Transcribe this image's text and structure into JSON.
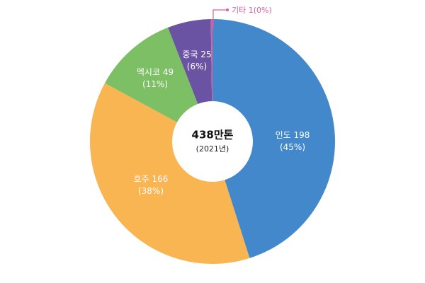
{
  "chart_data": {
    "type": "pie",
    "subtype": "donut",
    "title": "",
    "center_label": "438만톤",
    "center_sublabel": "(2021년)",
    "unit": "만톤",
    "total": 438,
    "categories": [
      "인도",
      "호주",
      "멕시코",
      "중국",
      "기타"
    ],
    "values": [
      198,
      166,
      49,
      25,
      1
    ],
    "percentages": [
      45,
      38,
      11,
      6,
      0
    ],
    "colors": [
      "#4488cc",
      "#f8b552",
      "#7dbf64",
      "#6a53a3",
      "#d9609e"
    ],
    "labels": [
      "인도 198",
      "호주 166",
      "멕시코 49",
      "중국 25",
      "기타 1(0%)"
    ],
    "pct_labels": [
      "(45%)",
      "(38%)",
      "(11%)",
      "(6%)",
      ""
    ],
    "start_angle": "top, clockwise",
    "legend": "none"
  },
  "labels": {
    "india": {
      "name": "인도 198",
      "pct": "(45%)"
    },
    "australia": {
      "name": "호주 166",
      "pct": "(38%)"
    },
    "mexico": {
      "name": "멕시코 49",
      "pct": "(11%)"
    },
    "china": {
      "name": "중국 25",
      "pct": "(6%)"
    },
    "other": {
      "text": "기타 1(0%)"
    }
  },
  "center": {
    "title": "438만톤",
    "sub": "(2021년)"
  }
}
